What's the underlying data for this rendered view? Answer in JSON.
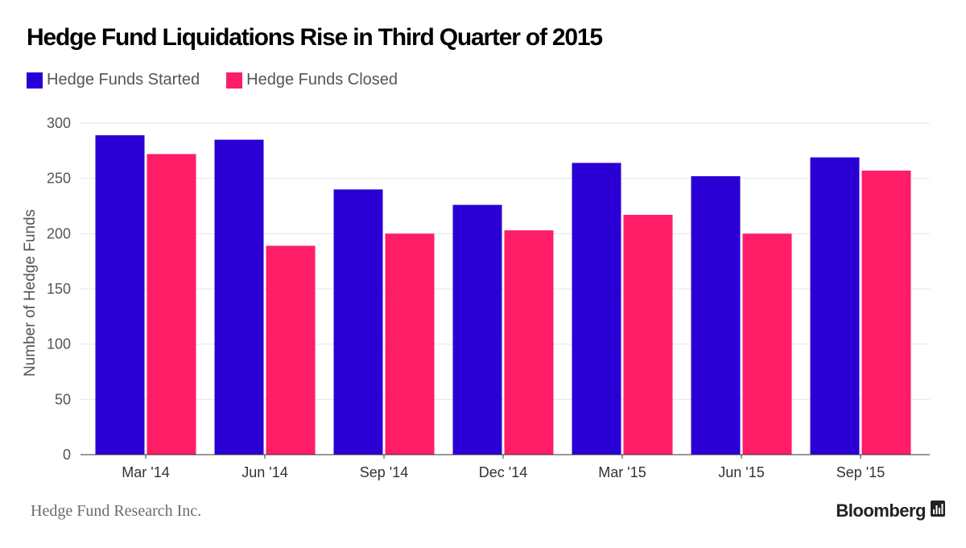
{
  "header": {
    "title": "Hedge Fund Liquidations Rise in Third Quarter of 2015"
  },
  "footer": {
    "source": "Hedge Fund Research Inc.",
    "brand": "Bloomberg",
    "brand_icon": "bar-chart-icon"
  },
  "colors": {
    "started": "#2a00d5",
    "closed": "#fe1d66",
    "grid": "#e6e6e6",
    "axis_text": "#555555"
  },
  "chart_data": {
    "type": "bar",
    "title": "Hedge Fund Liquidations Rise in Third Quarter of 2015",
    "xlabel": "",
    "ylabel": "Number of Hedge Funds",
    "categories": [
      "Mar '14",
      "Jun '14",
      "Sep '14",
      "Dec '14",
      "Mar '15",
      "Jun '15",
      "Sep '15"
    ],
    "series": [
      {
        "name": "Hedge Funds Started",
        "values": [
          289,
          285,
          240,
          226,
          264,
          252,
          269
        ]
      },
      {
        "name": "Hedge Funds Closed",
        "values": [
          272,
          189,
          200,
          203,
          217,
          200,
          257
        ]
      }
    ],
    "ylim": [
      0,
      300
    ],
    "yticks": [
      0,
      50,
      100,
      150,
      200,
      250,
      300
    ],
    "grid": true,
    "legend": "top-left"
  }
}
